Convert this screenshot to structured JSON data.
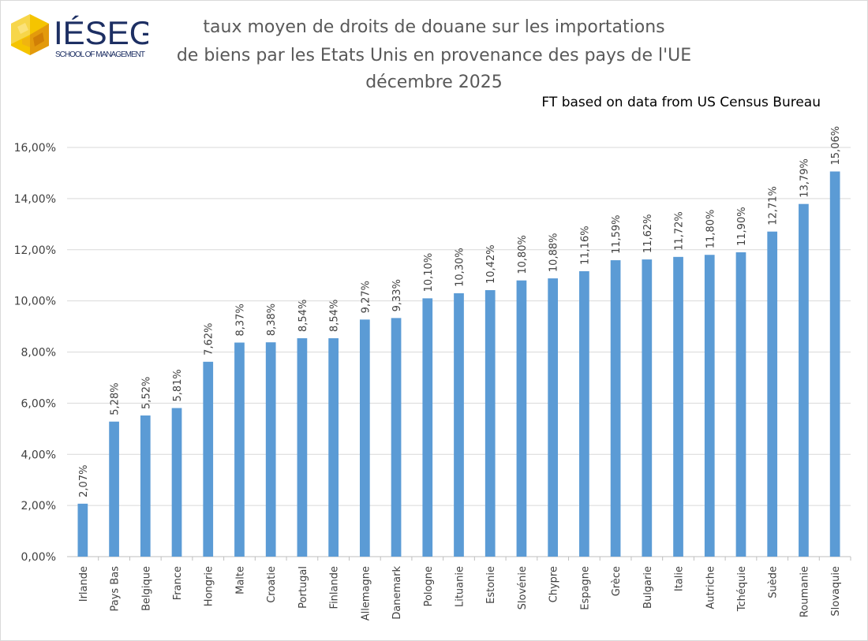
{
  "logo": {
    "brand": "IÉSEG",
    "tagline": "SCHOOL OF MANAGEMENT",
    "color": "#1d2f63",
    "accent": "#f2b515"
  },
  "header": {
    "title_line1": "taux moyen de droits de douane sur les importations",
    "title_line2": "de biens par les Etats Unis en provenance des pays de l'UE",
    "title_line3": "décembre 2025",
    "source": "FT based on data from US Census Bureau"
  },
  "chart_data": {
    "type": "bar",
    "title": "taux moyen de droits de douane sur les importations de biens par les Etats Unis en provenance des pays de l'UE décembre 2025",
    "source": "FT based on data from US Census Bureau",
    "xlabel": "",
    "ylabel": "",
    "ylim": [
      0,
      16
    ],
    "yticks": [
      "0,00%",
      "2,00%",
      "4,00%",
      "6,00%",
      "8,00%",
      "10,00%",
      "12,00%",
      "14,00%",
      "16,00%"
    ],
    "grid": true,
    "bar_color": "#5b9bd5",
    "categories": [
      "Irlande",
      "Pays Bas",
      "Belgique",
      "France",
      "Hongrie",
      "Malte",
      "Croatie",
      "Portugal",
      "Finlande",
      "Allemagne",
      "Danemark",
      "Pologne",
      "Lituanie",
      "Estonie",
      "Slovénie",
      "Chypre",
      "Espagne",
      "Grèce",
      "Bulgarie",
      "Italie",
      "Autriche",
      "Tchéquie",
      "Suède",
      "Roumanie",
      "Slovaquie"
    ],
    "values": [
      2.07,
      5.28,
      5.52,
      5.81,
      7.62,
      8.37,
      8.38,
      8.54,
      8.54,
      9.27,
      9.33,
      10.1,
      10.3,
      10.42,
      10.8,
      10.88,
      11.16,
      11.59,
      11.62,
      11.72,
      11.8,
      11.9,
      12.71,
      13.79,
      15.06
    ],
    "labels": [
      "2,07%",
      "5,28%",
      "5,52%",
      "5,81%",
      "7,62%",
      "8,37%",
      "8,38%",
      "8,54%",
      "8,54%",
      "9,27%",
      "9,33%",
      "10,10%",
      "10,30%",
      "10,42%",
      "10,80%",
      "10,88%",
      "11,16%",
      "11,59%",
      "11,62%",
      "11,72%",
      "11,80%",
      "11,90%",
      "12,71%",
      "13,79%",
      "15,06%"
    ]
  }
}
